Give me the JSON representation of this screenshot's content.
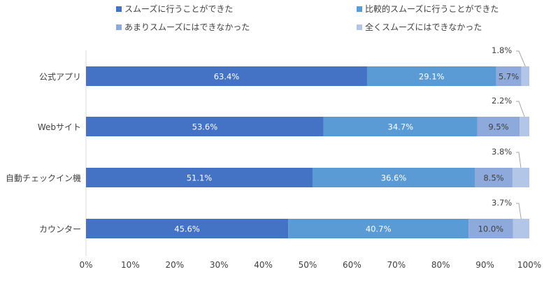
{
  "chart_data": {
    "type": "bar",
    "orientation": "horizontal",
    "stacked": true,
    "categories": [
      "公式アプリ",
      "Webサイト",
      "自動チェックイン機",
      "カウンター"
    ],
    "series": [
      {
        "name": "スムーズに行うことができた",
        "values": [
          63.4,
          53.6,
          51.1,
          45.6
        ],
        "color": "#4472C4",
        "label_color": "#ffffff"
      },
      {
        "name": "比較的スムーズに行うことができた",
        "values": [
          29.1,
          34.7,
          36.6,
          40.7
        ],
        "color": "#5B9BD5",
        "label_color": "#ffffff"
      },
      {
        "name": "あまりスムーズにはできなかった",
        "values": [
          5.7,
          9.5,
          8.5,
          10.0
        ],
        "color": "#8EA9DB",
        "label_color": "#404040"
      },
      {
        "name": "全くスムーズにはできなかった",
        "values": [
          1.8,
          2.2,
          3.8,
          3.7
        ],
        "color": "#B4C6E7",
        "label_color": "#404040"
      }
    ],
    "xlim": [
      0,
      100
    ],
    "x_ticks": [
      "0%",
      "10%",
      "20%",
      "30%",
      "40%",
      "50%",
      "60%",
      "70%",
      "80%",
      "90%",
      "100%"
    ],
    "xlabel": "",
    "ylabel": "",
    "legend_position": "top",
    "grid": false
  }
}
